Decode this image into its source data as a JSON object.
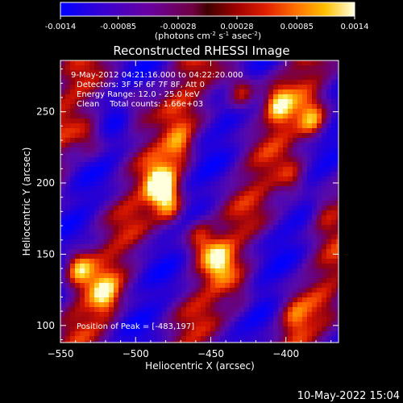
{
  "colorbar": {
    "tick_labels": [
      "-0.0014",
      "-0.00085",
      "-0.00028",
      "0.00028",
      "0.00085",
      "0.0014"
    ],
    "tick_values": [
      -0.0014,
      -0.00085,
      -0.00028,
      0.00028,
      0.00085,
      0.0014
    ],
    "range": [
      -0.0014,
      0.0014
    ],
    "units_main": "(photons cm",
    "units_sup1": "-2",
    "units_mid": " s",
    "units_sup2": "-1",
    "units_end": " asec",
    "units_sup3": "-2",
    "units_close": ")"
  },
  "info": {
    "time": "9-May-2012 04:21:16.000 to 04:22:20.000",
    "detectors": "Detectors: 3F 5F 6F 7F 8F, Att 0",
    "energy": "Energy Range: 12.0 - 25.0 keV",
    "clean": "Clean    Total counts: 1.66e+03",
    "peak": "Position of Peak = [-483,197]"
  },
  "footer": {
    "date": "10-May-2022 15:04"
  },
  "colors": {
    "negative": "#0000ff",
    "zero": "#000000",
    "positive_high": "#ffffff"
  },
  "chart_data": {
    "type": "heatmap",
    "title": "Reconstructed RHESSI Image",
    "xlabel": "Heliocentric X (arcsec)",
    "ylabel": "Heliocentric Y (arcsec)",
    "xlim": [
      -550,
      -365
    ],
    "ylim": [
      88,
      286
    ],
    "x_ticks": [
      -550,
      -500,
      -450,
      -400
    ],
    "x_tick_labels": [
      "−550",
      "−500",
      "−450",
      "−400"
    ],
    "y_ticks": [
      100,
      150,
      200,
      250
    ],
    "y_tick_labels": [
      "100",
      "150",
      "200",
      "250"
    ],
    "colormap": "blue-purple-red-yellow-white",
    "peak": [
      -483,
      197
    ],
    "bright_sources": [
      {
        "x": -483,
        "y": 197,
        "value": 0.0014
      },
      {
        "x": -538,
        "y": 140,
        "value": 0.0011
      },
      {
        "x": -476,
        "y": 183,
        "value": 0.001
      },
      {
        "x": -520,
        "y": 120,
        "value": 0.0009
      },
      {
        "x": -430,
        "y": 263,
        "value": 0.0011
      },
      {
        "x": -382,
        "y": 243,
        "value": 0.001
      },
      {
        "x": -405,
        "y": 255,
        "value": 0.0009
      },
      {
        "x": -458,
        "y": 162,
        "value": 0.0009
      },
      {
        "x": -445,
        "y": 145,
        "value": 0.0008
      },
      {
        "x": -470,
        "y": 225,
        "value": 0.0008
      },
      {
        "x": -395,
        "y": 200,
        "value": 0.0007
      },
      {
        "x": -375,
        "y": 180,
        "value": 0.0007
      },
      {
        "x": -500,
        "y": 250,
        "value": 0.0006
      },
      {
        "x": -530,
        "y": 230,
        "value": 0.0006
      },
      {
        "x": -430,
        "y": 120,
        "value": 0.0005
      },
      {
        "x": -395,
        "y": 105,
        "value": 0.0006
      }
    ]
  }
}
